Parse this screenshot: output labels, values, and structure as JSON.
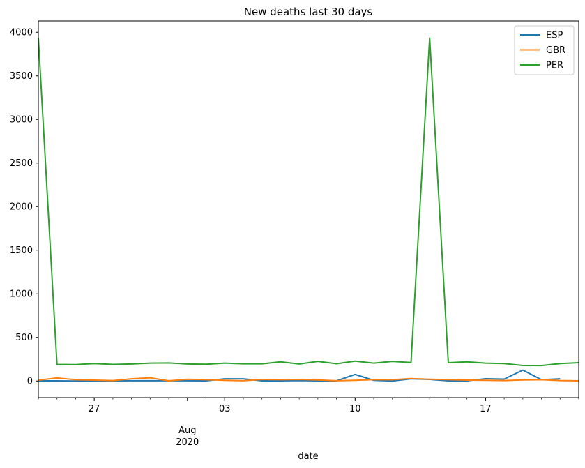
{
  "chart_data": {
    "type": "line",
    "title": "New deaths last 30 days",
    "xlabel": "date",
    "ylabel": "",
    "x_start": "2020-07-24",
    "x": [
      "2020-07-24",
      "2020-07-25",
      "2020-07-26",
      "2020-07-27",
      "2020-07-28",
      "2020-07-29",
      "2020-07-30",
      "2020-07-31",
      "2020-08-01",
      "2020-08-02",
      "2020-08-03",
      "2020-08-04",
      "2020-08-05",
      "2020-08-06",
      "2020-08-07",
      "2020-08-08",
      "2020-08-09",
      "2020-08-10",
      "2020-08-11",
      "2020-08-12",
      "2020-08-13",
      "2020-08-14",
      "2020-08-15",
      "2020-08-16",
      "2020-08-17",
      "2020-08-18",
      "2020-08-19",
      "2020-08-20",
      "2020-08-21",
      "2020-08-22"
    ],
    "xlim": [
      "2020-07-24",
      "2020-08-22"
    ],
    "ylim": [
      -190,
      4130
    ],
    "x_ticks": [
      {
        "date": "2020-07-27",
        "label": "27"
      },
      {
        "date": "2020-08-03",
        "label": "03"
      },
      {
        "date": "2020-08-10",
        "label": "10"
      },
      {
        "date": "2020-08-17",
        "label": "17"
      }
    ],
    "x_month_label": {
      "date": "2020-08-01",
      "month": "Aug",
      "year": "2020"
    },
    "y_ticks": [
      0,
      500,
      1000,
      1500,
      2000,
      2500,
      3000,
      3500,
      4000
    ],
    "legend_position": "top-right",
    "grid": false,
    "series": [
      {
        "name": "ESP",
        "color": "#1f77b4",
        "values": [
          2,
          2,
          0,
          2,
          2,
          3,
          3,
          3,
          3,
          2,
          25,
          25,
          2,
          2,
          5,
          2,
          2,
          75,
          8,
          0,
          25,
          18,
          2,
          2,
          26,
          22,
          125,
          15,
          25,
          null
        ]
      },
      {
        "name": "GBR",
        "color": "#ff7f0e",
        "values": [
          10,
          35,
          15,
          10,
          5,
          25,
          37,
          2,
          20,
          15,
          8,
          3,
          18,
          15,
          18,
          12,
          3,
          8,
          16,
          15,
          28,
          20,
          16,
          10,
          8,
          5,
          12,
          15,
          5,
          2
        ]
      },
      {
        "name": "PER",
        "color": "#2ca02c",
        "values": [
          3935,
          190,
          188,
          200,
          190,
          195,
          205,
          207,
          195,
          192,
          205,
          197,
          197,
          220,
          195,
          225,
          198,
          228,
          205,
          225,
          212,
          3935,
          210,
          220,
          205,
          200,
          178,
          177,
          200,
          210
        ]
      }
    ]
  }
}
